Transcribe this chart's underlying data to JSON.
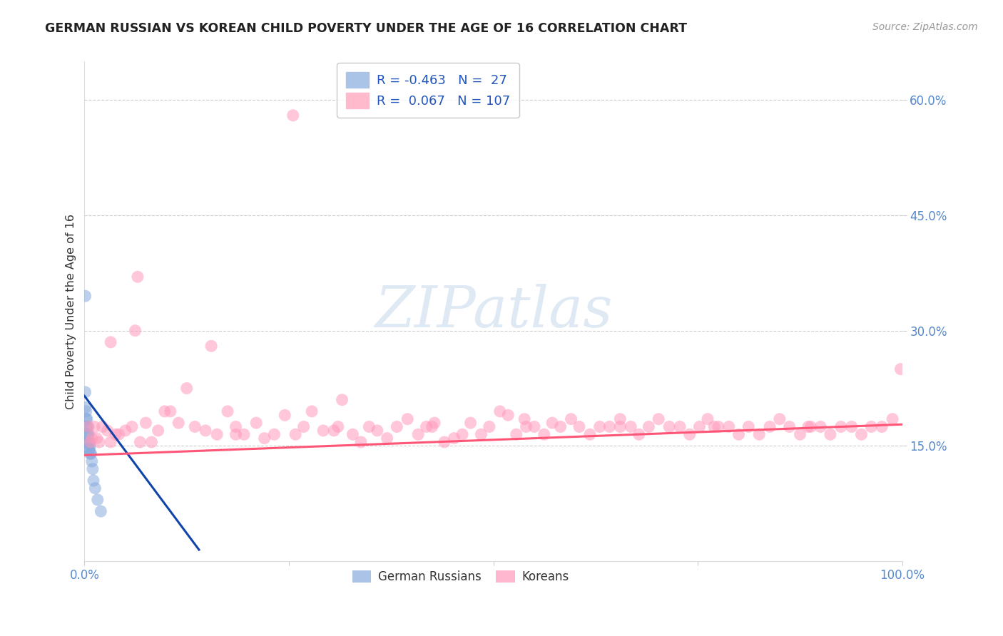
{
  "title": "GERMAN RUSSIAN VS KOREAN CHILD POVERTY UNDER THE AGE OF 16 CORRELATION CHART",
  "source": "Source: ZipAtlas.com",
  "ylabel": "Child Poverty Under the Age of 16",
  "xlim": [
    0,
    1.0
  ],
  "ylim": [
    0,
    0.65
  ],
  "ytick_positions": [
    0.15,
    0.3,
    0.45,
    0.6
  ],
  "ytick_labels": [
    "15.0%",
    "30.0%",
    "45.0%",
    "60.0%"
  ],
  "grid_color": "#cccccc",
  "background_color": "#ffffff",
  "legend_R_blue": "-0.463",
  "legend_N_blue": "27",
  "legend_R_pink": "0.067",
  "legend_N_pink": "107",
  "blue_color": "#88aadd",
  "pink_color": "#ff99bb",
  "line_blue_color": "#1144aa",
  "line_pink_color": "#ff5577",
  "watermark": "ZIPatlas",
  "german_russians_x": [
    0.001,
    0.001,
    0.002,
    0.002,
    0.002,
    0.003,
    0.003,
    0.003,
    0.003,
    0.004,
    0.004,
    0.004,
    0.005,
    0.005,
    0.005,
    0.006,
    0.006,
    0.007,
    0.007,
    0.008,
    0.009,
    0.01,
    0.011,
    0.013,
    0.016,
    0.02,
    0.001
  ],
  "german_russians_y": [
    0.22,
    0.2,
    0.195,
    0.185,
    0.175,
    0.185,
    0.175,
    0.165,
    0.155,
    0.175,
    0.165,
    0.155,
    0.165,
    0.155,
    0.145,
    0.155,
    0.145,
    0.15,
    0.14,
    0.14,
    0.13,
    0.12,
    0.105,
    0.095,
    0.08,
    0.065,
    0.345
  ],
  "koreans_x": [
    0.005,
    0.007,
    0.009,
    0.012,
    0.015,
    0.018,
    0.022,
    0.028,
    0.032,
    0.038,
    0.042,
    0.05,
    0.058,
    0.065,
    0.068,
    0.075,
    0.082,
    0.09,
    0.098,
    0.105,
    0.115,
    0.125,
    0.135,
    0.148,
    0.155,
    0.162,
    0.175,
    0.185,
    0.195,
    0.21,
    0.22,
    0.232,
    0.245,
    0.258,
    0.268,
    0.278,
    0.292,
    0.305,
    0.315,
    0.328,
    0.338,
    0.348,
    0.358,
    0.37,
    0.382,
    0.395,
    0.408,
    0.418,
    0.428,
    0.44,
    0.452,
    0.462,
    0.472,
    0.485,
    0.495,
    0.508,
    0.518,
    0.528,
    0.538,
    0.55,
    0.562,
    0.572,
    0.582,
    0.595,
    0.605,
    0.618,
    0.63,
    0.642,
    0.655,
    0.668,
    0.678,
    0.69,
    0.702,
    0.715,
    0.728,
    0.74,
    0.752,
    0.762,
    0.775,
    0.788,
    0.8,
    0.812,
    0.825,
    0.838,
    0.85,
    0.862,
    0.875,
    0.888,
    0.9,
    0.912,
    0.925,
    0.938,
    0.95,
    0.962,
    0.975,
    0.988,
    0.998,
    0.032,
    0.062,
    0.185,
    0.31,
    0.425,
    0.54,
    0.655,
    0.77,
    0.885,
    0.255
  ],
  "koreans_y": [
    0.175,
    0.155,
    0.16,
    0.175,
    0.16,
    0.155,
    0.175,
    0.17,
    0.155,
    0.165,
    0.165,
    0.17,
    0.175,
    0.37,
    0.155,
    0.18,
    0.155,
    0.17,
    0.195,
    0.195,
    0.18,
    0.225,
    0.175,
    0.17,
    0.28,
    0.165,
    0.195,
    0.165,
    0.165,
    0.18,
    0.16,
    0.165,
    0.19,
    0.165,
    0.175,
    0.195,
    0.17,
    0.17,
    0.21,
    0.165,
    0.155,
    0.175,
    0.17,
    0.16,
    0.175,
    0.185,
    0.165,
    0.175,
    0.18,
    0.155,
    0.16,
    0.165,
    0.18,
    0.165,
    0.175,
    0.195,
    0.19,
    0.165,
    0.185,
    0.175,
    0.165,
    0.18,
    0.175,
    0.185,
    0.175,
    0.165,
    0.175,
    0.175,
    0.185,
    0.175,
    0.165,
    0.175,
    0.185,
    0.175,
    0.175,
    0.165,
    0.175,
    0.185,
    0.175,
    0.175,
    0.165,
    0.175,
    0.165,
    0.175,
    0.185,
    0.175,
    0.165,
    0.175,
    0.175,
    0.165,
    0.175,
    0.175,
    0.165,
    0.175,
    0.175,
    0.185,
    0.25,
    0.285,
    0.3,
    0.175,
    0.175,
    0.175,
    0.175,
    0.175,
    0.175,
    0.175,
    0.58
  ],
  "blue_line_x": [
    0.0,
    0.14
  ],
  "blue_line_y": [
    0.215,
    0.015
  ],
  "pink_line_x": [
    0.0,
    1.0
  ],
  "pink_line_y": [
    0.138,
    0.178
  ]
}
